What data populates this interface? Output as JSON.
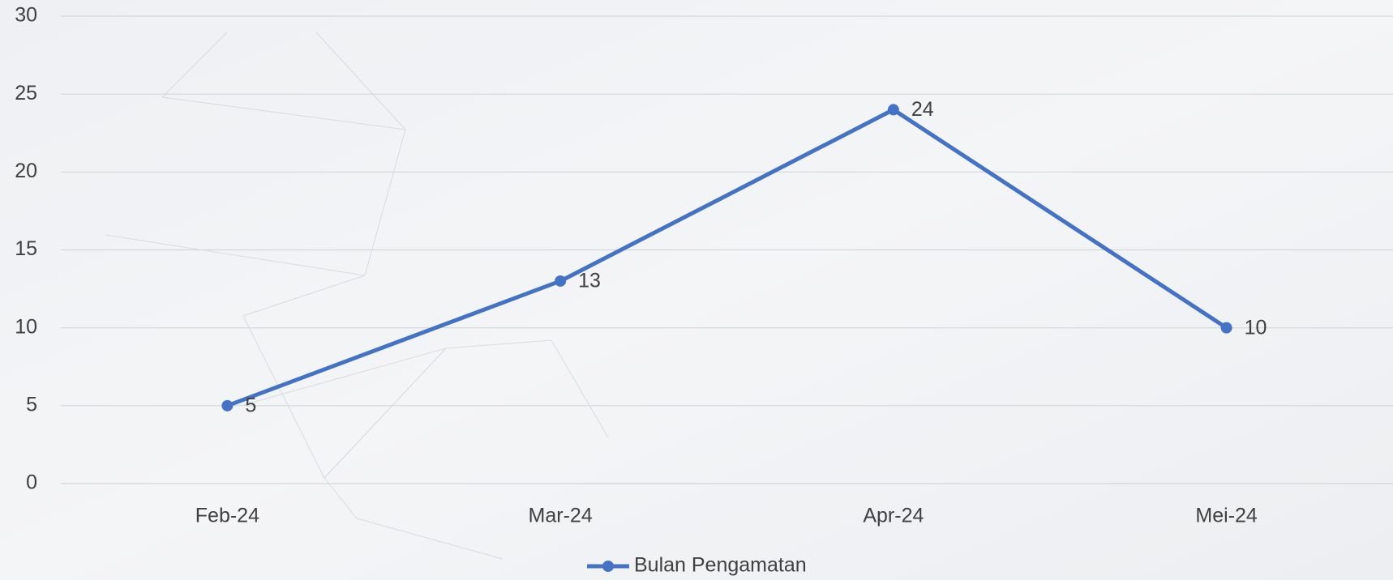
{
  "chart_data": {
    "type": "line",
    "categories": [
      "Feb-24",
      "Mar-24",
      "Apr-24",
      "Mei-24"
    ],
    "series": [
      {
        "name": "Bulan Pengamatan",
        "color": "#4472c4",
        "values": [
          5,
          13,
          24,
          10
        ]
      }
    ],
    "ylim": [
      0,
      30
    ],
    "yticks": [
      0,
      5,
      10,
      15,
      20,
      25,
      30
    ],
    "grid": true,
    "legend": "bottom"
  }
}
